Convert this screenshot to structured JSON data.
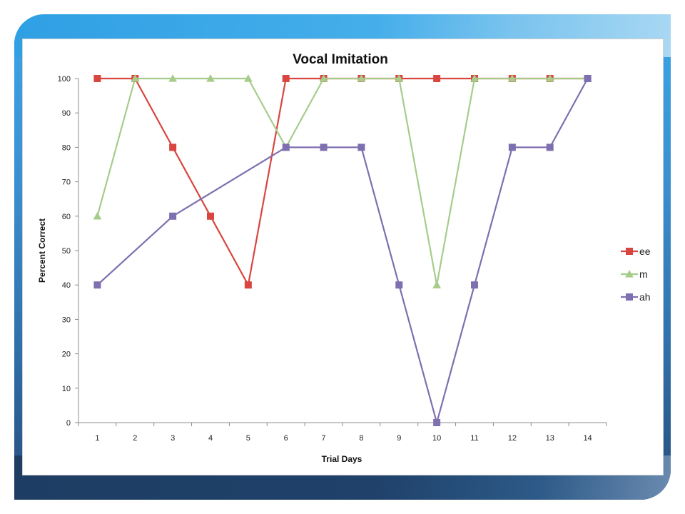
{
  "chart_data": {
    "type": "line",
    "title": "Vocal Imitation",
    "xlabel": "Trial Days",
    "ylabel": "Percent Correct",
    "x": [
      1,
      2,
      3,
      4,
      5,
      6,
      7,
      8,
      9,
      10,
      11,
      12,
      13,
      14
    ],
    "ylim": [
      0,
      100
    ],
    "yticks": [
      0,
      10,
      20,
      30,
      40,
      50,
      60,
      70,
      80,
      90,
      100
    ],
    "grid": false,
    "legend_position": "right",
    "series": [
      {
        "name": "ee",
        "marker": "square",
        "color": "#d9453f",
        "values": [
          100,
          100,
          80,
          60,
          40,
          100,
          100,
          100,
          100,
          100,
          100,
          100,
          100,
          100
        ]
      },
      {
        "name": "m",
        "marker": "triangle",
        "color": "#a6cc8a",
        "values": [
          60,
          100,
          100,
          100,
          100,
          80,
          100,
          100,
          100,
          40,
          100,
          100,
          100,
          100
        ]
      },
      {
        "name": "ah",
        "marker": "square",
        "color": "#7e6fb0",
        "values": [
          40,
          null,
          60,
          null,
          null,
          80,
          80,
          80,
          40,
          0,
          40,
          80,
          80,
          100
        ]
      }
    ]
  }
}
